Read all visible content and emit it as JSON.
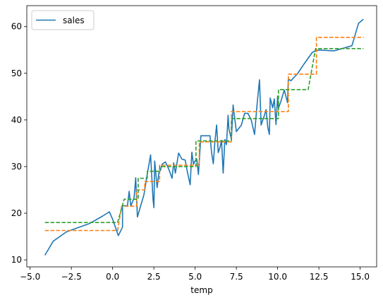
{
  "chart_data": {
    "type": "line",
    "title": "",
    "xlabel": "temp",
    "ylabel": "",
    "xlim": [
      -5.2,
      16.0
    ],
    "ylim": [
      8.5,
      64.5
    ],
    "xticks": [
      -5.0,
      -2.5,
      0.0,
      2.5,
      5.0,
      7.5,
      10.0,
      12.5,
      15.0
    ],
    "xtick_labels": [
      "−5.0",
      "−2.5",
      "0.0",
      "2.5",
      "5.0",
      "7.5",
      "10.0",
      "12.5",
      "15.0"
    ],
    "yticks": [
      10,
      20,
      30,
      40,
      50,
      60
    ],
    "ytick_labels": [
      "10",
      "20",
      "30",
      "40",
      "50",
      "60"
    ],
    "grid": false,
    "legend": {
      "position": "upper-left",
      "entries": [
        "sales"
      ]
    },
    "series": [
      {
        "name": "sales",
        "color": "#1f77b4",
        "style": "solid",
        "x": [
          -4.1,
          -3.6,
          -2.8,
          -2.2,
          -1.4,
          -0.6,
          -0.2,
          0.0,
          0.35,
          0.6,
          0.6,
          0.9,
          1.0,
          1.1,
          1.3,
          1.4,
          1.5,
          1.9,
          2.1,
          2.3,
          2.45,
          2.5,
          2.55,
          2.7,
          2.8,
          2.9,
          3.0,
          3.2,
          3.4,
          3.6,
          3.7,
          3.8,
          4.0,
          4.2,
          4.4,
          4.5,
          4.7,
          4.8,
          4.9,
          5.0,
          5.1,
          5.2,
          5.35,
          5.5,
          5.7,
          5.9,
          6.0,
          6.1,
          6.2,
          6.3,
          6.4,
          6.5,
          6.6,
          6.7,
          6.8,
          6.9,
          7.0,
          7.05,
          7.2,
          7.3,
          7.5,
          7.8,
          8.0,
          8.2,
          8.4,
          8.6,
          8.75,
          8.9,
          9.0,
          9.2,
          9.3,
          9.4,
          9.5,
          9.55,
          9.7,
          9.8,
          9.9,
          10.0,
          10.05,
          10.2,
          10.4,
          10.6,
          10.65,
          10.8,
          11.2,
          11.6,
          12.1,
          12.3,
          12.5,
          13.4,
          14.5,
          14.9,
          15.2
        ],
        "y": [
          11.0,
          14.0,
          16.0,
          16.8,
          17.8,
          19.4,
          20.3,
          18.7,
          15.2,
          17.0,
          21.6,
          21.6,
          24.7,
          21.5,
          23.3,
          27.6,
          19.2,
          24.0,
          28.4,
          32.5,
          22.9,
          21.2,
          31.2,
          25.5,
          28.7,
          29.2,
          30.5,
          31.0,
          29.5,
          27.5,
          30.8,
          28.6,
          32.9,
          31.6,
          31.4,
          29.4,
          26.1,
          33.1,
          30.5,
          31.2,
          31.6,
          28.3,
          36.6,
          36.6,
          36.6,
          36.6,
          33.0,
          30.6,
          35.4,
          38.9,
          33.0,
          34.0,
          35.6,
          28.6,
          35.8,
          34.7,
          41.0,
          38.0,
          35.8,
          43.2,
          37.5,
          38.9,
          41.4,
          41.4,
          40.0,
          36.9,
          43.2,
          48.6,
          38.9,
          41.0,
          42.2,
          38.5,
          36.9,
          44.7,
          42.6,
          44.5,
          39.0,
          45.1,
          42.5,
          44.0,
          46.4,
          43.7,
          48.8,
          48.4,
          49.9,
          52.0,
          54.5,
          54.8,
          55.0,
          54.8,
          55.9,
          60.7,
          61.6
        ]
      },
      {
        "name": "",
        "color": "#ff7f0e",
        "style": "dashed",
        "x": [
          -4.1,
          0.3,
          0.55,
          0.55,
          1.45,
          1.45,
          1.95,
          1.95,
          2.85,
          2.85,
          5.25,
          5.25,
          7.2,
          7.2,
          10.65,
          10.65,
          12.35,
          12.35,
          15.2
        ],
        "y": [
          16.3,
          16.3,
          21.5,
          21.5,
          21.5,
          25.0,
          25.0,
          26.8,
          26.8,
          30.3,
          30.3,
          35.3,
          35.3,
          41.8,
          41.8,
          49.8,
          49.8,
          57.7,
          57.7
        ]
      },
      {
        "name": "",
        "color": "#2ca02c",
        "style": "dashed",
        "x": [
          -4.1,
          0.3,
          0.7,
          0.7,
          1.55,
          1.55,
          2.1,
          2.1,
          2.85,
          2.85,
          5.05,
          5.05,
          7.2,
          7.2,
          10.05,
          10.05,
          11.85,
          11.85,
          12.3,
          12.3,
          15.2
        ],
        "y": [
          18.0,
          18.0,
          23.0,
          23.0,
          23.0,
          27.5,
          27.5,
          29.0,
          29.0,
          30.0,
          30.0,
          35.5,
          35.5,
          40.3,
          40.3,
          46.5,
          46.5,
          46.5,
          55.3,
          55.3,
          55.3
        ]
      }
    ]
  }
}
